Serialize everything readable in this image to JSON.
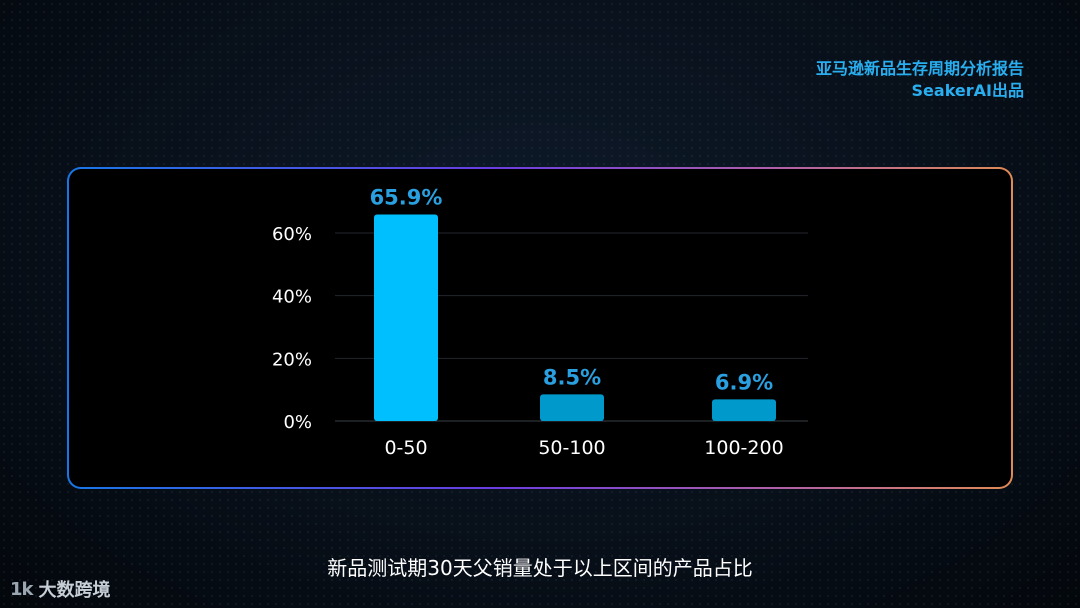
{
  "header": {
    "report_title": "亚马逊新品生存周期分析报告",
    "brand_line": "SeakerAI出品"
  },
  "caption": "新品测试期30天父销量处于以上区间的产品占比",
  "logo": {
    "mark": "1k",
    "icon": "1k-logo-icon",
    "text": "大数跨境"
  },
  "colors": {
    "accent": "#29aef0",
    "bar_primary": "#00bfff",
    "bar_secondary": "#0099cc",
    "label": "#2aa0e0"
  },
  "chart_data": {
    "type": "bar",
    "categories": [
      "0-50",
      "50-100",
      "100-200"
    ],
    "values": [
      65.9,
      8.5,
      6.9
    ],
    "data_labels": [
      "65.9%",
      "8.5%",
      "6.9%"
    ],
    "yticks": [
      "0%",
      "20%",
      "40%",
      "60%"
    ],
    "ytick_values": [
      0,
      20,
      40,
      60
    ],
    "ylim": [
      0,
      60
    ],
    "grid": true,
    "legend": "none"
  }
}
